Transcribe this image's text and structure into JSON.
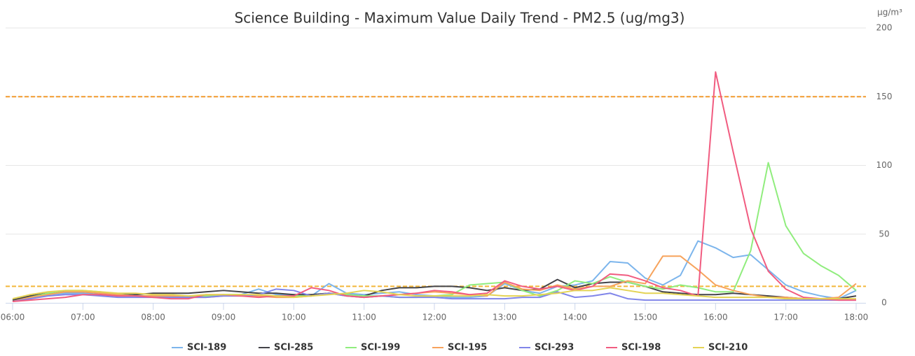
{
  "chart_data": {
    "type": "line",
    "title": "Science Building - Maximum Value Daily Trend - PM2.5 (ug/mg3)",
    "y_unit": "µg/m³",
    "categories": [
      "06:00",
      null,
      null,
      null,
      "07:00",
      null,
      null,
      null,
      "08:00",
      null,
      null,
      null,
      "09:00",
      null,
      null,
      null,
      "10:00",
      null,
      null,
      null,
      "11:00",
      null,
      null,
      null,
      "12:00",
      null,
      null,
      null,
      "13:00",
      null,
      null,
      null,
      "14:00",
      null,
      null,
      null,
      "15:00",
      null,
      null,
      null,
      "16:00",
      null,
      null,
      null,
      "17:00",
      null,
      null,
      null,
      "18:00"
    ],
    "series": [
      {
        "name": "SCI-189",
        "color": "#7cb5ec",
        "values": [
          2,
          4,
          6,
          7,
          7,
          6,
          5,
          5,
          5,
          5,
          4,
          5,
          6,
          6,
          10,
          6,
          6,
          5,
          14,
          7,
          6,
          7,
          8,
          6,
          5,
          4,
          4,
          5,
          14,
          9,
          7,
          12,
          13,
          16,
          30,
          29,
          18,
          13,
          20,
          45,
          40,
          33,
          35,
          24,
          13,
          8,
          5,
          3,
          9
        ]
      },
      {
        "name": "SCI-285",
        "color": "#434348",
        "values": [
          2,
          5,
          7,
          8,
          8,
          7,
          6,
          6,
          7,
          7,
          7,
          8,
          9,
          8,
          7,
          7,
          6,
          6,
          7,
          6,
          5,
          9,
          11,
          11,
          12,
          12,
          11,
          9,
          11,
          9,
          10,
          17,
          11,
          14,
          15,
          15,
          12,
          8,
          7,
          6,
          6,
          7,
          6,
          5,
          4,
          3,
          3,
          3,
          5
        ]
      },
      {
        "name": "SCI-199",
        "color": "#90ed7d",
        "values": [
          1,
          4,
          7,
          9,
          9,
          8,
          6,
          5,
          4,
          4,
          4,
          5,
          6,
          6,
          5,
          5,
          5,
          5,
          7,
          6,
          5,
          5,
          4,
          4,
          5,
          6,
          13,
          14,
          15,
          9,
          5,
          9,
          16,
          14,
          19,
          15,
          12,
          10,
          13,
          11,
          8,
          8,
          38,
          102,
          56,
          36,
          27,
          20,
          9
        ]
      },
      {
        "name": "SCI-195",
        "color": "#f7a35c",
        "values": [
          1,
          4,
          6,
          8,
          8,
          7,
          6,
          5,
          5,
          5,
          4,
          4,
          5,
          5,
          5,
          4,
          4,
          5,
          7,
          5,
          4,
          5,
          6,
          7,
          8,
          7,
          6,
          5,
          15,
          10,
          9,
          13,
          10,
          12,
          12,
          16,
          14,
          34,
          34,
          24,
          13,
          9,
          6,
          4,
          4,
          3,
          3,
          4,
          14
        ]
      },
      {
        "name": "SCI-293",
        "color": "#8085e9",
        "values": [
          1,
          3,
          5,
          6,
          6,
          5,
          4,
          4,
          4,
          4,
          4,
          4,
          5,
          5,
          6,
          10,
          9,
          5,
          7,
          5,
          4,
          5,
          4,
          4,
          4,
          3,
          3,
          3,
          3,
          4,
          4,
          8,
          4,
          5,
          7,
          3,
          2,
          2,
          2,
          2,
          2,
          2,
          2,
          2,
          2,
          2,
          2,
          2,
          2
        ]
      },
      {
        "name": "SCI-198",
        "color": "#f15c80",
        "values": [
          1,
          2,
          3,
          4,
          6,
          6,
          5,
          5,
          4,
          3,
          3,
          6,
          6,
          5,
          4,
          5,
          5,
          11,
          9,
          5,
          4,
          5,
          6,
          7,
          9,
          8,
          6,
          7,
          16,
          12,
          10,
          12,
          9,
          12,
          21,
          20,
          16,
          11,
          9,
          5,
          168,
          110,
          54,
          23,
          10,
          4,
          3,
          2,
          2
        ]
      },
      {
        "name": "SCI-210",
        "color": "#e4d354",
        "values": [
          3,
          6,
          8,
          9,
          9,
          8,
          7,
          7,
          6,
          6,
          5,
          6,
          6,
          6,
          6,
          5,
          4,
          5,
          6,
          7,
          9,
          8,
          6,
          5,
          5,
          5,
          5,
          6,
          5,
          5,
          6,
          7,
          9,
          9,
          11,
          9,
          7,
          7,
          6,
          5,
          4,
          4,
          4,
          4,
          3,
          3,
          3,
          3,
          3
        ]
      }
    ],
    "plot_lines": [
      {
        "value": 150,
        "color": "#f29a2e"
      },
      {
        "value": 12,
        "color": "#f2b63a"
      }
    ],
    "ylim": [
      0,
      200
    ],
    "yticks": [
      0,
      50,
      100,
      150,
      200
    ],
    "grid": true
  }
}
